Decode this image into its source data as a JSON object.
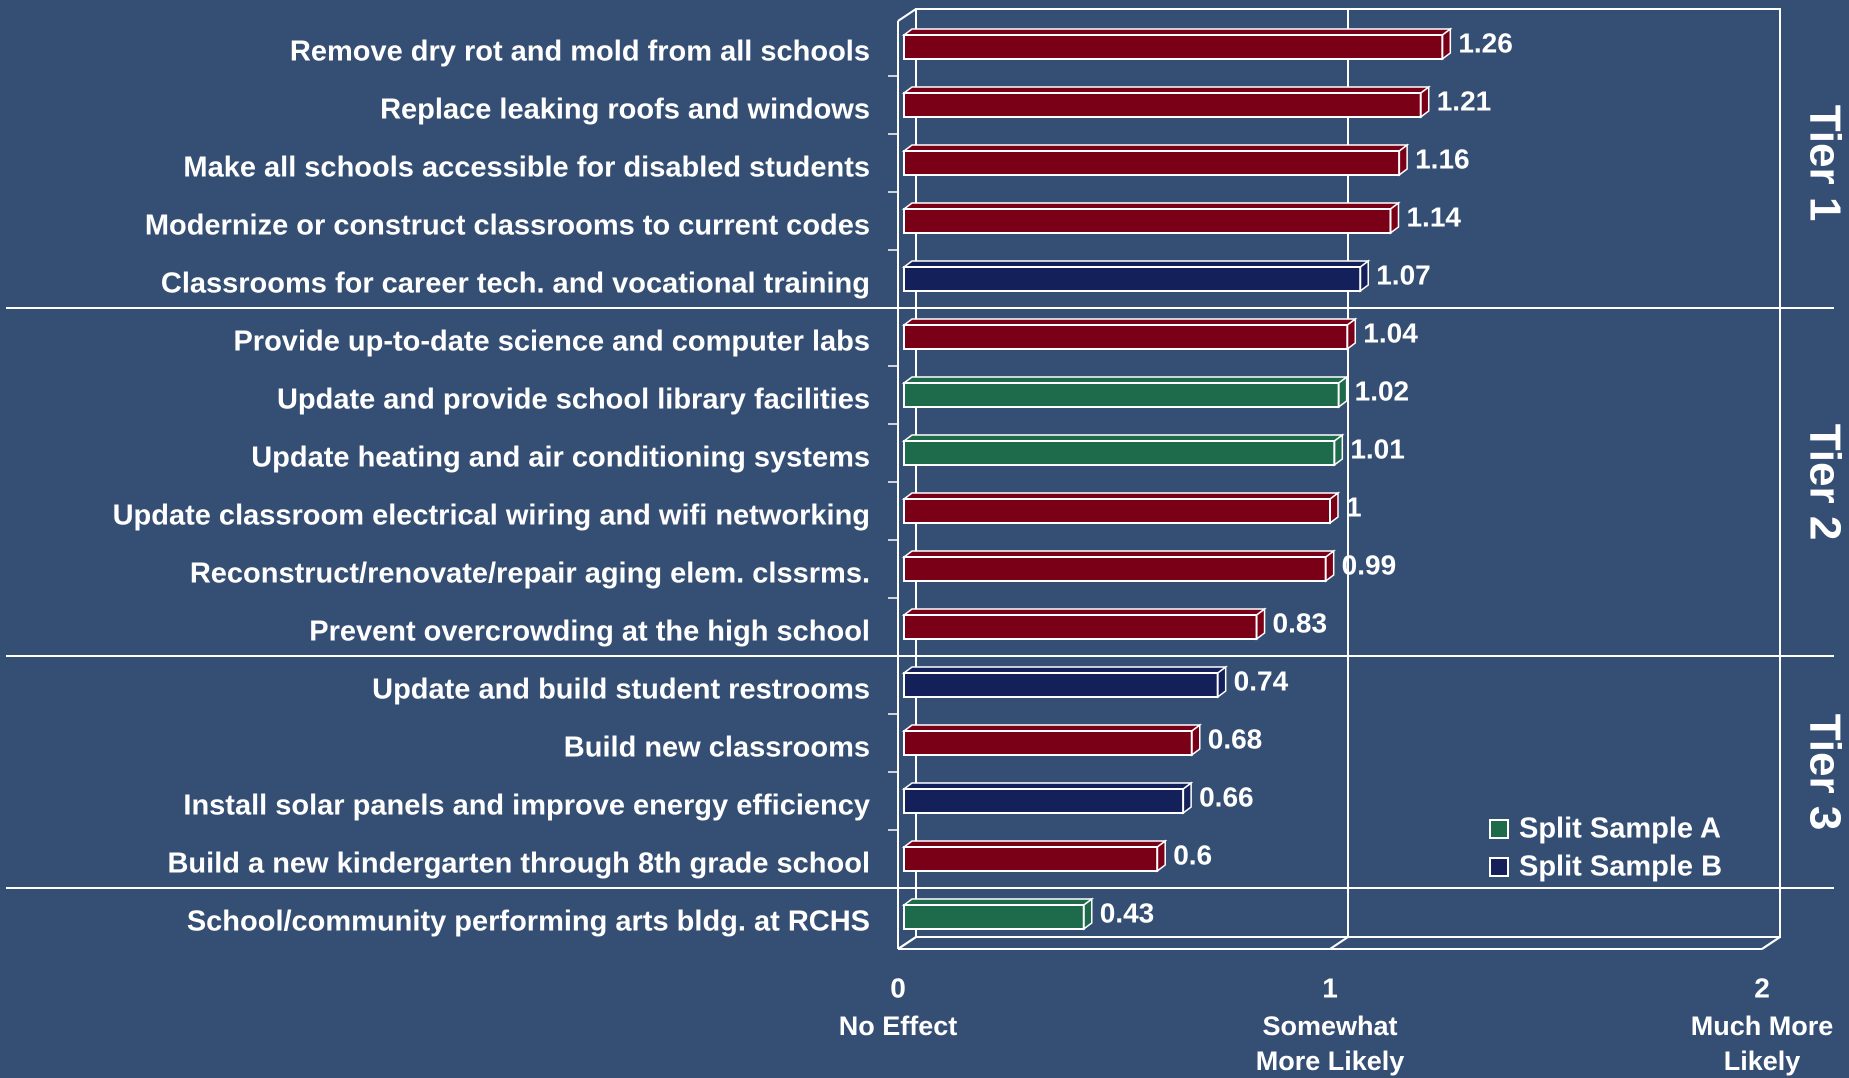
{
  "chart_data": {
    "type": "bar",
    "orientation": "horizontal",
    "categories": [
      "Remove dry rot and mold from all schools",
      "Replace leaking roofs and windows",
      "Make all schools accessible for disabled students",
      "Modernize or construct classrooms to current codes",
      "Classrooms for career tech. and vocational training",
      "Provide up-to-date science and computer labs",
      "Update and provide school library facilities",
      "Update heating and air conditioning systems",
      "Update classroom electrical wiring and wifi networking",
      "Reconstruct/renovate/repair aging elem. clssrms.",
      "Prevent overcrowding at the high school",
      "Update and build student restrooms",
      "Build new classrooms",
      "Install solar panels and improve energy efficiency",
      "Build a new kindergarten through 8th grade school",
      "School/community performing arts bldg. at RCHS"
    ],
    "values": [
      1.26,
      1.21,
      1.16,
      1.14,
      1.07,
      1.04,
      1.02,
      1.01,
      1,
      0.99,
      0.83,
      0.74,
      0.68,
      0.66,
      0.6,
      0.43
    ],
    "bar_colors": [
      "#7a0018",
      "#7a0018",
      "#7a0018",
      "#7a0018",
      "#13205a",
      "#7a0018",
      "#1d6b4a",
      "#1d6b4a",
      "#7a0018",
      "#7a0018",
      "#7a0018",
      "#13205a",
      "#7a0018",
      "#13205a",
      "#7a0018",
      "#1d6b4a"
    ],
    "xlim": [
      0,
      2
    ],
    "xticks": [
      0,
      1,
      2
    ],
    "xtick_captions": [
      [
        "No Effect"
      ],
      [
        "Somewhat",
        "More  Likely"
      ],
      [
        "Much More",
        "Likely"
      ]
    ],
    "grid": true,
    "legend": {
      "position": "lower right",
      "entries": [
        {
          "name": "Split Sample A",
          "color": "#1d6b4a"
        },
        {
          "name": "Split Sample B",
          "color": "#13205a"
        }
      ]
    },
    "tiers": [
      {
        "label": "Tier 1",
        "start": 0,
        "end": 4
      },
      {
        "label": "Tier 2",
        "start": 5,
        "end": 10
      },
      {
        "label": "Tier 3",
        "start": 11,
        "end": 14
      }
    ]
  }
}
